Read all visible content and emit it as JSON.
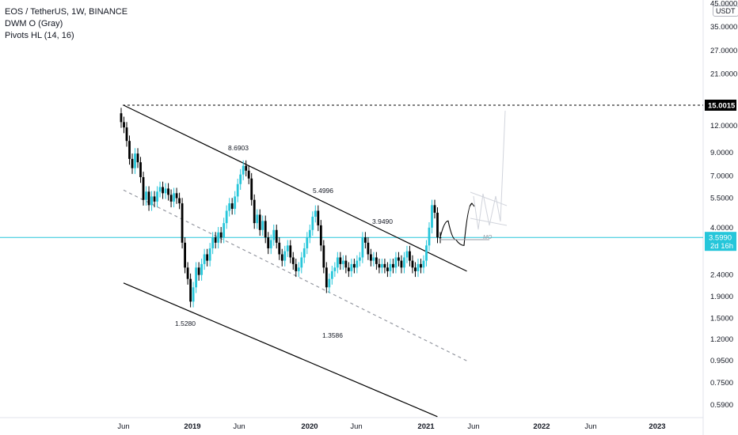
{
  "legend": {
    "symbol_line": "EOS / TetherUS, 1W, BINANCE",
    "indicator_1": "DWM O (Gray)",
    "indicator_2": "Pivots HL (14, 16)"
  },
  "price_axis": {
    "unit": "USDT",
    "ticks": [
      "45.0000",
      "35.0000",
      "27.0000",
      "21.0000",
      "15.0015",
      "12.0000",
      "9.0000",
      "7.0000",
      "5.5000",
      "4.0000",
      "3.5990",
      "2.4000",
      "1.9000",
      "1.5000",
      "1.2000",
      "0.9500",
      "0.7500",
      "0.5900"
    ],
    "horizontal_level": "15.0015",
    "current_price": "3.5990",
    "countdown": "2d 16h"
  },
  "time_axis": {
    "ticks": [
      {
        "label": "Jun",
        "bold": false
      },
      {
        "label": "2019",
        "bold": true
      },
      {
        "label": "Jun",
        "bold": false
      },
      {
        "label": "2020",
        "bold": true
      },
      {
        "label": "Jun",
        "bold": false
      },
      {
        "label": "2021",
        "bold": true
      },
      {
        "label": "Jun",
        "bold": false
      },
      {
        "label": "2022",
        "bold": true
      },
      {
        "label": "Jun",
        "bold": false
      },
      {
        "label": "2023",
        "bold": true
      }
    ]
  },
  "pivot_labels": [
    "8.6903",
    "5.4996",
    "3.9490",
    "1.5280",
    "1.3586"
  ],
  "annotation": "MO",
  "colors": {
    "up": "#26c6da",
    "down": "#000000",
    "price_line": "#26c6da",
    "channel": "#000000"
  },
  "chart_data": {
    "type": "candlestick",
    "x_start": "2018-06",
    "x_end": "2023-03",
    "scale": "log",
    "ylim": [
      0.55,
      45
    ],
    "channel_upper": [
      {
        "x": "2018-06",
        "y": 15.0
      },
      {
        "x": "2021-05",
        "y": 2.5
      }
    ],
    "channel_mid": [
      {
        "x": "2018-06",
        "y": 6.0
      },
      {
        "x": "2021-05",
        "y": 0.95
      }
    ],
    "channel_lower": [
      {
        "x": "2018-06",
        "y": 2.2
      },
      {
        "x": "2021-02",
        "y": 0.52
      }
    ],
    "pivots": [
      {
        "x": "2018-06",
        "y": 15.0015
      },
      {
        "x": "2018-12",
        "y": 1.528
      },
      {
        "x": "2019-06",
        "y": 8.6903
      },
      {
        "x": "2020-03",
        "y": 1.3586
      },
      {
        "x": "2020-02",
        "y": 5.4996
      },
      {
        "x": "2020-08",
        "y": 3.949
      }
    ],
    "closes": [
      12.5,
      11.8,
      10.2,
      8.4,
      7.6,
      8.9,
      8.1,
      6.9,
      5.4,
      5.9,
      5.1,
      5.6,
      5.3,
      5.9,
      6.2,
      5.8,
      6.1,
      5.7,
      5.3,
      5.8,
      5.5,
      5.2,
      3.4,
      2.6,
      2.3,
      1.8,
      2.1,
      2.6,
      2.4,
      2.7,
      3.0,
      2.8,
      3.2,
      3.6,
      3.4,
      3.8,
      3.6,
      4.2,
      4.8,
      5.2,
      4.9,
      5.6,
      6.4,
      7.1,
      7.8,
      7.4,
      6.8,
      5.4,
      4.2,
      4.6,
      3.9,
      4.3,
      3.6,
      3.2,
      3.5,
      3.9,
      3.4,
      3.0,
      2.8,
      3.1,
      3.3,
      2.9,
      2.7,
      2.5,
      2.6,
      2.9,
      3.2,
      3.6,
      3.9,
      4.5,
      4.8,
      4.1,
      3.3,
      2.6,
      2.1,
      2.3,
      2.5,
      2.6,
      2.9,
      2.7,
      2.8,
      2.6,
      2.5,
      2.7,
      2.6,
      2.8,
      2.9,
      3.6,
      3.4,
      3.0,
      2.8,
      2.9,
      2.7,
      2.6,
      2.7,
      2.6,
      2.5,
      2.7,
      2.6,
      2.9,
      2.8,
      2.6,
      2.9,
      3.1,
      2.8,
      2.6,
      2.5,
      2.7,
      2.6,
      2.8,
      3.3,
      4.0,
      5.1,
      4.7,
      3.6,
      3.599
    ],
    "projection": [
      {
        "x": "2021-03",
        "y": 3.6
      },
      {
        "x": "2021-04",
        "y": 4.3
      },
      {
        "x": "2021-04",
        "y": 3.5
      },
      {
        "x": "2021-05",
        "y": 3.3
      },
      {
        "x": "2021-05",
        "y": 5.2
      }
    ]
  }
}
